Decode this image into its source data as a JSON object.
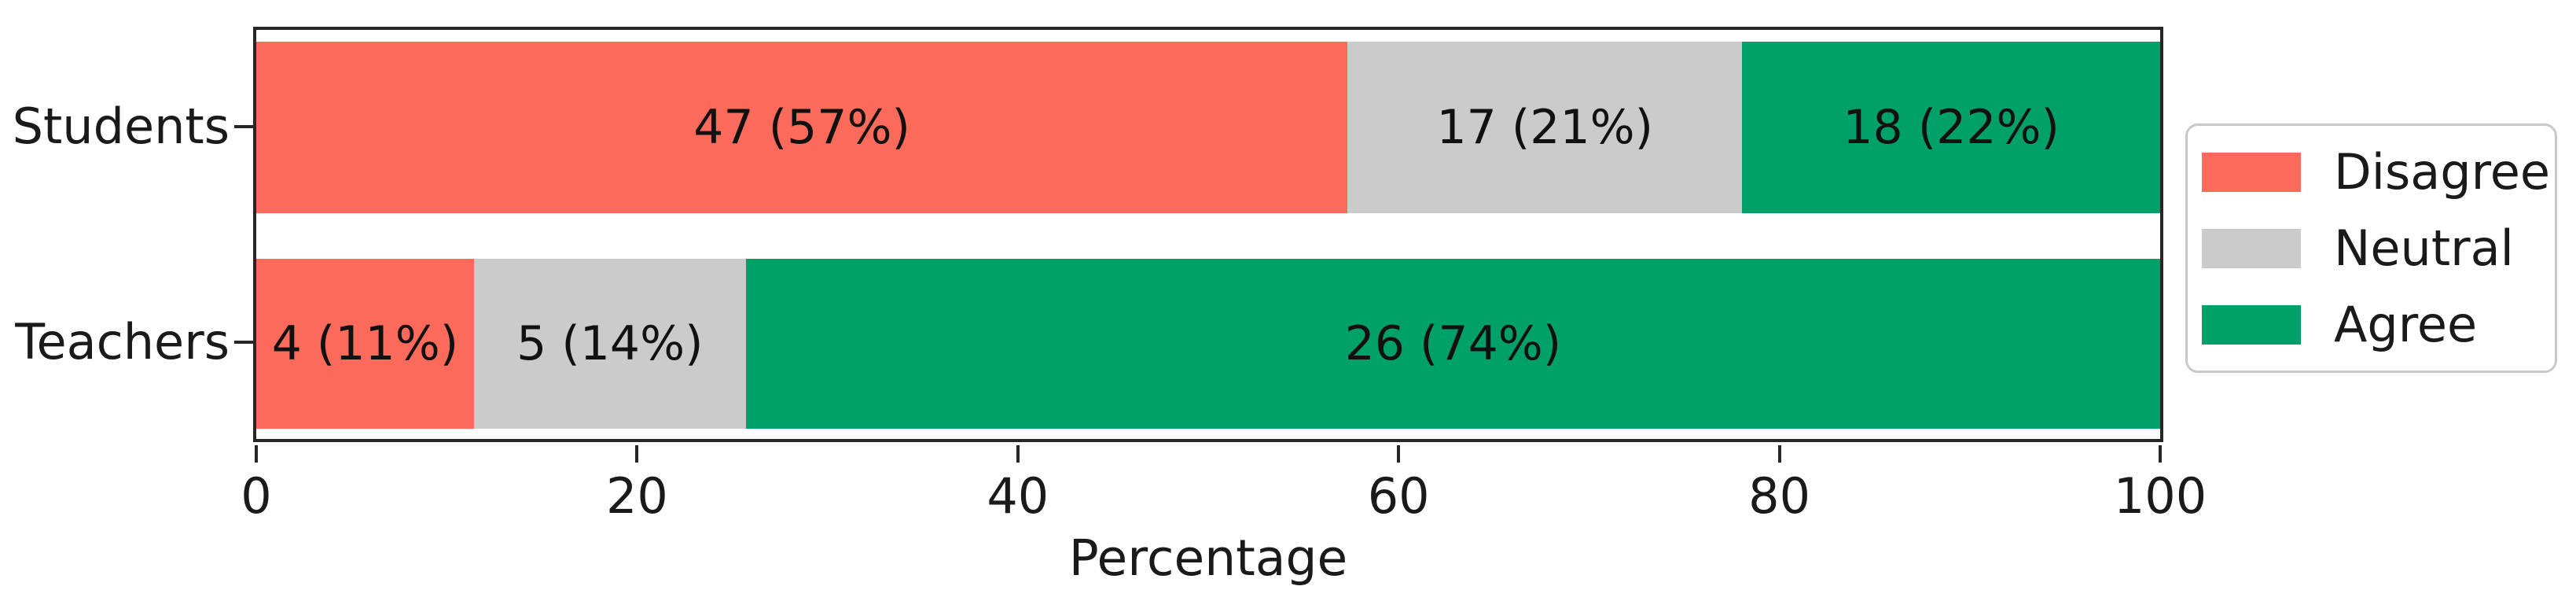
{
  "chart_data": {
    "type": "bar",
    "orientation": "horizontal",
    "stacked": true,
    "title": "",
    "xlabel": "Percentage",
    "ylabel": "",
    "xlim": [
      0,
      100
    ],
    "xticks": [
      0,
      20,
      40,
      60,
      80,
      100
    ],
    "grid": false,
    "legend_position": "right-outside",
    "categories": [
      "Students",
      "Teachers"
    ],
    "series": [
      {
        "name": "Disagree",
        "color": "#FB6A5A",
        "counts": [
          47,
          4
        ],
        "percents": [
          57,
          11
        ]
      },
      {
        "name": "Neutral",
        "color": "#CBCBCB",
        "counts": [
          17,
          5
        ],
        "percents": [
          21,
          14
        ]
      },
      {
        "name": "Agree",
        "color": "#00A169",
        "counts": [
          18,
          26
        ],
        "percents": [
          22,
          74
        ]
      }
    ],
    "bar_labels": [
      [
        "47 (57%)",
        "17 (21%)",
        "18 (22%)"
      ],
      [
        "4 (11%)",
        "5 (14%)",
        "26 (74%)"
      ]
    ]
  },
  "colors": {
    "spine": "#262626",
    "text": "#1a1a1a",
    "legend_border": "#c9c9c9",
    "background": "#ffffff"
  }
}
